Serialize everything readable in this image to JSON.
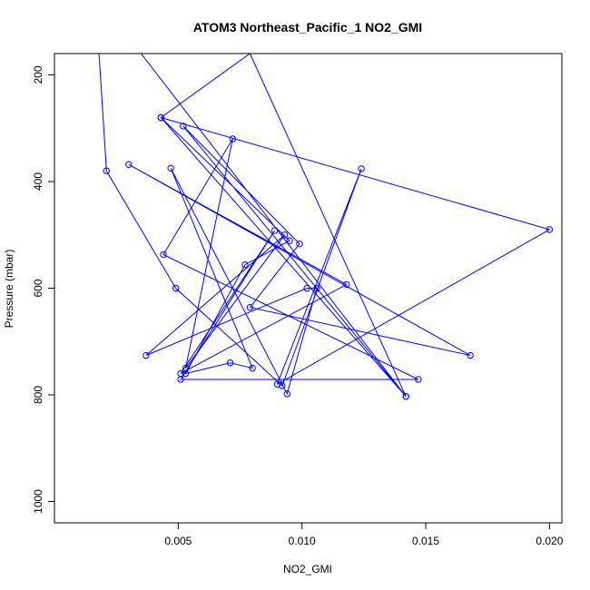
{
  "chart_data": {
    "type": "line",
    "title": "ATOM3 Northeast_Pacific_1 NO2_GMI",
    "xlabel": "NO2_GMI",
    "ylabel": "Pressure (mbar)",
    "xlim": [
      0.0,
      0.0205
    ],
    "ylim": [
      1040,
      160
    ],
    "y_axis_reversed": true,
    "x_ticks": [
      0.005,
      0.01,
      0.015,
      0.02
    ],
    "x_tick_labels": [
      "0.005",
      "0.010",
      "0.015",
      "0.020"
    ],
    "y_ticks": [
      200,
      400,
      600,
      800,
      1000
    ],
    "y_tick_labels": [
      "200",
      "400",
      "600",
      "800",
      "1000"
    ],
    "grid": false,
    "legend": "none",
    "series_color": "#0000ff",
    "series": [
      {
        "marker": "open-circle",
        "points": [
          {
            "x": 0.0018,
            "y": 160
          },
          {
            "x": 0.0021,
            "y": 380
          },
          {
            "x": 0.0049,
            "y": 600
          },
          {
            "x": 0.0092,
            "y": 783
          },
          {
            "x": 0.0124,
            "y": 376
          },
          {
            "x": 0.009,
            "y": 780
          },
          {
            "x": 0.02,
            "y": 490
          },
          {
            "x": 0.0043,
            "y": 280
          },
          {
            "x": 0.0079,
            "y": 160
          },
          {
            "x": 0.0142,
            "y": 803
          },
          {
            "x": 0.0052,
            "y": 296
          },
          {
            "x": 0.0099,
            "y": 517
          },
          {
            "x": 0.0079,
            "y": 636
          },
          {
            "x": 0.0168,
            "y": 726
          },
          {
            "x": 0.003,
            "y": 368
          },
          {
            "x": 0.0118,
            "y": 593
          },
          {
            "x": 0.0051,
            "y": 760
          },
          {
            "x": 0.0089,
            "y": 492
          },
          {
            "x": 0.0051,
            "y": 771
          },
          {
            "x": 0.0147,
            "y": 771
          },
          {
            "x": 0.0044,
            "y": 537
          },
          {
            "x": 0.0072,
            "y": 320
          },
          {
            "x": 0.0053,
            "y": 750
          },
          {
            "x": 0.0093,
            "y": 500
          },
          {
            "x": 0.0037,
            "y": 726
          },
          {
            "x": 0.0102,
            "y": 600
          },
          {
            "x": 0.0106,
            "y": 600
          },
          {
            "x": 0.0094,
            "y": 798
          },
          {
            "x": 0.0047,
            "y": 375
          },
          {
            "x": 0.008,
            "y": 750
          },
          {
            "x": 0.0071,
            "y": 740
          },
          {
            "x": 0.0053,
            "y": 760
          },
          {
            "x": 0.0077,
            "y": 556
          },
          {
            "x": 0.0095,
            "y": 511
          },
          {
            "x": 0.0043,
            "y": 280
          },
          {
            "x": 0.0142,
            "y": 803
          },
          {
            "x": 0.0035,
            "y": 160
          }
        ]
      }
    ]
  }
}
